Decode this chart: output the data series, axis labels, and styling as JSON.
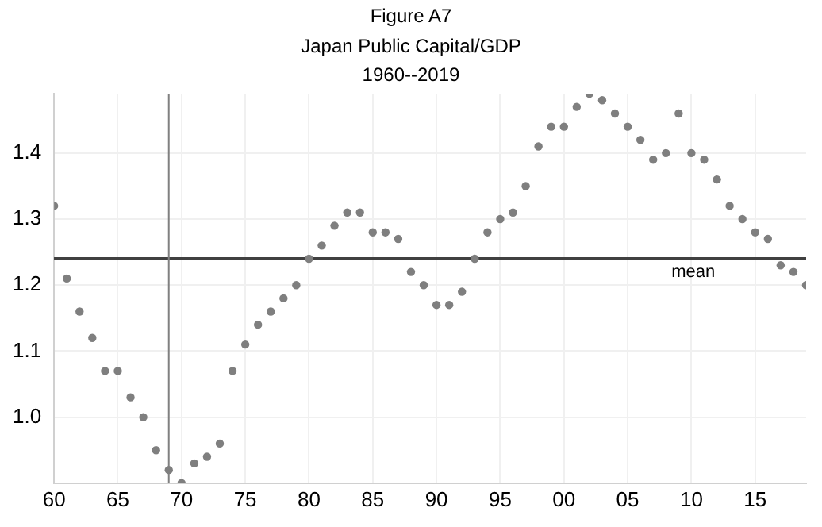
{
  "chart_data": {
    "type": "scatter",
    "title": "Figure A7",
    "subtitle": "Japan Public Capital/GDP",
    "annotations": [
      "1960--2019"
    ],
    "x": [
      1960,
      1961,
      1962,
      1963,
      1964,
      1965,
      1966,
      1967,
      1968,
      1969,
      1970,
      1971,
      1972,
      1973,
      1974,
      1975,
      1976,
      1977,
      1978,
      1979,
      1980,
      1981,
      1982,
      1983,
      1984,
      1985,
      1986,
      1987,
      1988,
      1989,
      1990,
      1991,
      1992,
      1993,
      1994,
      1995,
      1996,
      1997,
      1998,
      1999,
      2000,
      2001,
      2002,
      2003,
      2004,
      2005,
      2006,
      2007,
      2008,
      2009,
      2010,
      2011,
      2012,
      2013,
      2014,
      2015,
      2016,
      2017,
      2018,
      2019
    ],
    "series": [
      {
        "color": "#7f7f7f",
        "values": [
          1.32,
          1.21,
          1.16,
          1.12,
          1.07,
          1.07,
          1.03,
          1.0,
          0.95,
          0.92,
          0.9,
          0.93,
          0.94,
          0.96,
          1.07,
          1.11,
          1.14,
          1.16,
          1.18,
          1.2,
          1.24,
          1.26,
          1.29,
          1.31,
          1.31,
          1.28,
          1.28,
          1.27,
          1.22,
          1.2,
          1.17,
          1.17,
          1.19,
          1.24,
          1.28,
          1.3,
          1.31,
          1.35,
          1.41,
          1.44,
          1.44,
          1.47,
          1.49,
          1.48,
          1.46,
          1.44,
          1.42,
          1.39,
          1.4,
          1.46,
          1.4,
          1.39,
          1.36,
          1.32,
          1.3,
          1.28,
          1.27,
          1.23,
          1.22,
          1.2
        ]
      }
    ],
    "xlim": [
      1960,
      2019
    ],
    "xticks": [
      {
        "value": 1960,
        "label": "60"
      },
      {
        "value": 1965,
        "label": "65"
      },
      {
        "value": 1970,
        "label": "70"
      },
      {
        "value": 1975,
        "label": "75"
      },
      {
        "value": 1980,
        "label": "80"
      },
      {
        "value": 1985,
        "label": "85"
      },
      {
        "value": 1990,
        "label": "90"
      },
      {
        "value": 1995,
        "label": "95"
      },
      {
        "value": 2000,
        "label": "00"
      },
      {
        "value": 2005,
        "label": "05"
      },
      {
        "value": 2010,
        "label": "10"
      },
      {
        "value": 2015,
        "label": "15"
      }
    ],
    "ylim": [
      0.9,
      1.49
    ],
    "yticks": [
      {
        "value": 1.0,
        "label": "1.0"
      },
      1.1,
      1.2,
      1.3,
      1.4
    ],
    "ref_lines": [
      {
        "axis": "y",
        "value": 1.24,
        "label": "mean",
        "color": "#404040"
      },
      {
        "axis": "x",
        "value": 1969,
        "color": "#808080"
      }
    ],
    "grid": true,
    "legend": false,
    "marker": "circle"
  }
}
